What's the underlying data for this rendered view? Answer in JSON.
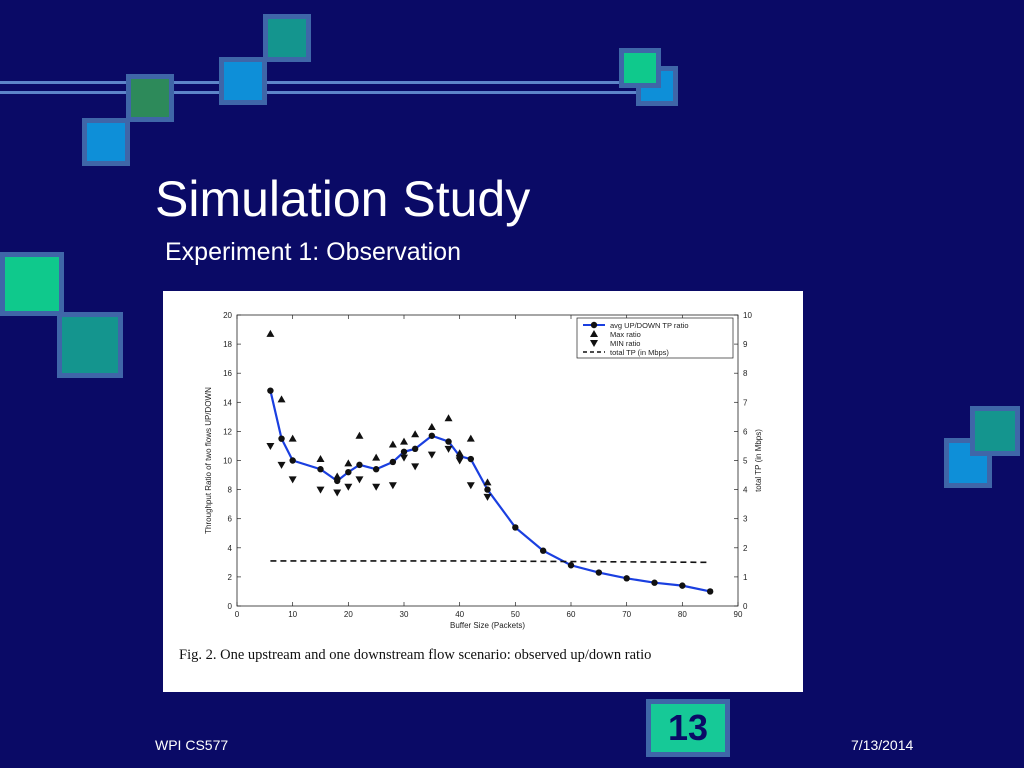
{
  "slide": {
    "title": "Simulation Study",
    "subtitle": "Experiment 1: Observation",
    "footer_left": "WPI CS577",
    "footer_right": "7/13/2014",
    "page_number": "13"
  },
  "colors": {
    "background": "#0a0a66",
    "line": "#5d84c9",
    "square_border": "#3f66a8",
    "square_teal": "#14958e",
    "square_blue": "#0e8fd8",
    "square_green": "#0fc98c",
    "square_olive": "#2d8a5a",
    "series_avg": "#1a3fe0"
  },
  "figure": {
    "caption": "Fig. 2.    One upstream and one downstream flow scenario: observed up/down ratio"
  },
  "chart_data": {
    "type": "line",
    "xlabel": "Buffer Size (Packets)",
    "ylabel": "Throughput Ratio of two flows UP/DOWN",
    "y2label": "total TP (in Mbps)",
    "xlim": [
      0,
      90
    ],
    "ylim": [
      0,
      20
    ],
    "y2lim": [
      0,
      10
    ],
    "xticks": [
      0,
      10,
      20,
      30,
      40,
      50,
      60,
      70,
      80,
      90
    ],
    "yticks": [
      0,
      2,
      4,
      6,
      8,
      10,
      12,
      14,
      16,
      18,
      20
    ],
    "y2ticks": [
      0,
      1,
      2,
      3,
      4,
      5,
      6,
      7,
      8,
      9,
      10
    ],
    "legend_position": "top-right",
    "series": [
      {
        "name": "avg UP/DOWN TP ratio",
        "marker": "circle",
        "points": [
          [
            6,
            14.8
          ],
          [
            8,
            11.5
          ],
          [
            10,
            10
          ],
          [
            15,
            9.4
          ],
          [
            18,
            8.6
          ],
          [
            20,
            9.2
          ],
          [
            22,
            9.7
          ],
          [
            25,
            9.4
          ],
          [
            28,
            9.9
          ],
          [
            30,
            10.6
          ],
          [
            32,
            10.8
          ],
          [
            35,
            11.7
          ],
          [
            38,
            11.3
          ],
          [
            40,
            10.3
          ],
          [
            42,
            10.1
          ],
          [
            45,
            8.0
          ],
          [
            50,
            5.4
          ],
          [
            55,
            3.8
          ],
          [
            60,
            2.8
          ],
          [
            65,
            2.3
          ],
          [
            70,
            1.9
          ],
          [
            75,
            1.6
          ],
          [
            80,
            1.4
          ],
          [
            85,
            1.0
          ]
        ]
      },
      {
        "name": "Max ratio",
        "marker": "triangle-up",
        "points": [
          [
            6,
            18.7
          ],
          [
            8,
            14.2
          ],
          [
            10,
            11.5
          ],
          [
            15,
            10.1
          ],
          [
            18,
            8.9
          ],
          [
            20,
            9.8
          ],
          [
            22,
            11.7
          ],
          [
            25,
            10.2
          ],
          [
            28,
            11.1
          ],
          [
            30,
            11.3
          ],
          [
            32,
            11.8
          ],
          [
            35,
            12.3
          ],
          [
            38,
            12.9
          ],
          [
            40,
            10.5
          ],
          [
            42,
            11.5
          ],
          [
            45,
            8.5
          ]
        ]
      },
      {
        "name": "MIN ratio",
        "marker": "triangle-down",
        "points": [
          [
            6,
            11.0
          ],
          [
            8,
            9.7
          ],
          [
            10,
            8.7
          ],
          [
            15,
            8.0
          ],
          [
            18,
            7.8
          ],
          [
            20,
            8.2
          ],
          [
            22,
            8.7
          ],
          [
            25,
            8.2
          ],
          [
            28,
            8.3
          ],
          [
            30,
            10.2
          ],
          [
            32,
            9.6
          ],
          [
            35,
            10.4
          ],
          [
            38,
            10.8
          ],
          [
            40,
            10.0
          ],
          [
            42,
            8.3
          ],
          [
            45,
            7.5
          ]
        ]
      },
      {
        "name": "total TP (in Mbps)",
        "line_style": "dashed",
        "axis": "right",
        "points": [
          [
            6,
            1.55
          ],
          [
            40,
            1.55
          ],
          [
            85,
            1.5
          ]
        ]
      }
    ]
  }
}
